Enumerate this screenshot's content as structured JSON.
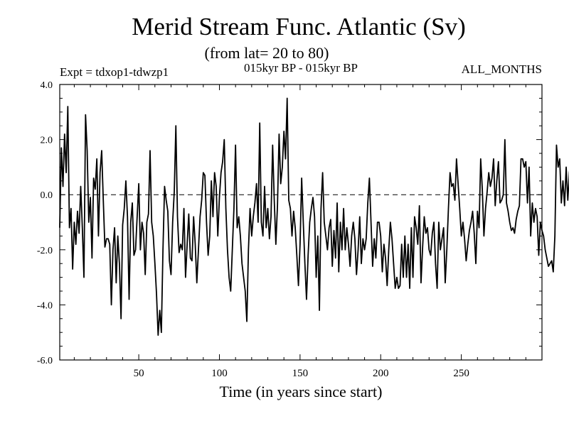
{
  "chart_data": {
    "type": "line",
    "title": "Merid Stream Func. Atlantic (Sv)",
    "subtitle": "(from lat= 20 to 80)",
    "header_left": "Expt = tdxop1-tdwzp1",
    "header_center": "015kyr BP - 015kyr BP",
    "header_right": "ALL_MONTHS",
    "xlabel": "Time (in years since start)",
    "ylabel": "",
    "xlim": [
      1,
      300
    ],
    "ylim": [
      -6.0,
      4.0
    ],
    "x_ticks": [
      50,
      100,
      150,
      200,
      250
    ],
    "x_tick_labels": [
      "50",
      "100",
      "150",
      "200",
      "250"
    ],
    "y_ticks": [
      -6,
      -4,
      -2,
      0,
      2,
      4
    ],
    "y_tick_labels": [
      "-6.0",
      "-4.0",
      "-2.0",
      "0.0",
      "2.0",
      "4.0"
    ],
    "zero_line": "dashed",
    "series": [
      {
        "name": "Merid Stream Func. Atlantic",
        "color": "#000000",
        "x_start": 1,
        "x_step": 1,
        "values": [
          -1.2,
          1.7,
          0.3,
          2.2,
          0.8,
          3.2,
          -1.2,
          -0.5,
          -2.7,
          -1.0,
          -1.8,
          -0.6,
          -1.4,
          0.3,
          -1.2,
          -3.0,
          2.9,
          1.6,
          -1.0,
          -0.1,
          -2.3,
          0.6,
          0.2,
          1.3,
          -1.5,
          0.8,
          1.6,
          -0.2,
          -1.9,
          -1.6,
          -1.6,
          -1.8,
          -4.0,
          -2.0,
          -1.2,
          -3.2,
          -1.5,
          -2.5,
          -4.5,
          -1.1,
          -0.5,
          0.5,
          -0.8,
          -3.8,
          -1.0,
          -0.3,
          -2.2,
          -2.0,
          -0.8,
          0.4,
          -2.0,
          -1.0,
          -1.4,
          -2.9,
          -1.0,
          -0.7,
          1.6,
          -1.0,
          -1.5,
          -2.5,
          -3.6,
          -5.1,
          -4.2,
          -5.0,
          -2.0,
          0.3,
          -0.2,
          -0.6,
          -2.4,
          -2.9,
          -1.0,
          0.1,
          2.5,
          -0.8,
          -2.1,
          -1.8,
          -2.0,
          -0.5,
          -3.0,
          -1.8,
          -0.7,
          -2.3,
          -2.4,
          -0.8,
          -1.8,
          -3.2,
          -2.0,
          -0.8,
          -0.2,
          0.8,
          0.7,
          -1.0,
          -2.2,
          -1.5,
          0.5,
          -0.8,
          0.8,
          0.3,
          -1.5,
          -0.1,
          0.8,
          1.2,
          2.0,
          -0.5,
          -2.0,
          -3.0,
          -3.5,
          -2.0,
          -0.5,
          1.8,
          -1.2,
          -0.8,
          -1.5,
          -2.5,
          -3.0,
          -3.5,
          -4.6,
          -2.0,
          -0.5,
          -1.5,
          -0.8,
          -0.3,
          0.4,
          -1.0,
          2.6,
          -1.0,
          -1.5,
          0.3,
          -1.2,
          -0.5,
          -1.6,
          -0.8,
          1.8,
          -0.2,
          -1.8,
          -0.4,
          2.2,
          0.4,
          1.0,
          2.3,
          1.3,
          3.5,
          -0.2,
          -0.5,
          -1.5,
          -0.6,
          -1.2,
          -2.2,
          -3.3,
          -1.8,
          0.6,
          -1.0,
          -2.5,
          -3.8,
          -2.2,
          -1.0,
          -0.5,
          -0.1,
          -0.8,
          -3.0,
          -1.5,
          -4.2,
          -0.5,
          0.8,
          -1.0,
          -1.5,
          -2.0,
          -1.2,
          -0.9,
          -2.6,
          -1.3,
          -2.3,
          -0.3,
          -2.8,
          -1.0,
          -2.0,
          -0.5,
          -2.0,
          -1.2,
          -1.8,
          -2.6,
          -1.5,
          -1.0,
          -1.6,
          -2.9,
          -2.0,
          -0.8,
          -2.5,
          -1.6,
          -2.0,
          -1.6,
          -0.3,
          0.6,
          -1.0,
          -2.6,
          -1.6,
          -2.3,
          -1.0,
          -1.0,
          -1.5,
          -2.8,
          -1.8,
          -2.3,
          -3.3,
          -2.0,
          -1.0,
          -1.6,
          -2.5,
          -3.4,
          -3.0,
          -3.4,
          -3.3,
          -1.8,
          -3.0,
          -1.5,
          -3.0,
          -1.8,
          -3.4,
          -1.2,
          -3.0,
          -0.8,
          -1.2,
          -1.8,
          -0.4,
          -3.2,
          -1.9,
          -0.8,
          -1.4,
          -1.2,
          -2.0,
          -2.2,
          -1.4,
          -1.0,
          -2.5,
          -3.4,
          -1.0,
          -2.0,
          -1.6,
          -1.2,
          -3.2,
          -2.0,
          -0.5,
          0.8,
          0.3,
          0.4,
          -0.2,
          1.3,
          0.4,
          -0.5,
          -1.5,
          -1.0,
          -1.6,
          -2.4,
          -1.8,
          -1.3,
          -1.0,
          -0.6,
          -1.4,
          -2.5,
          -0.6,
          -1.2,
          1.3,
          0.2,
          -1.5,
          -0.5,
          0.1,
          0.8,
          0.3,
          0.6,
          1.3,
          -0.4,
          0.5,
          1.2,
          -0.3,
          -0.2,
          0.0,
          2.0,
          -0.3,
          -0.6,
          -1.0,
          -1.3,
          -1.2,
          -1.4,
          -0.9,
          -0.6,
          -0.4,
          1.3,
          1.3,
          1.0,
          1.2,
          -0.3,
          1.0,
          -1.5,
          -0.3,
          -1.0,
          -0.5,
          -0.8,
          -2.2,
          -1.0,
          -1.3,
          -1.5,
          -2.0,
          -2.3,
          -2.6,
          -2.5,
          -2.4,
          -2.8,
          -1.5,
          1.8,
          1.0,
          1.3,
          -0.3,
          0.5,
          -0.4,
          1.0,
          -0.2,
          0.8,
          1.3
        ]
      }
    ]
  }
}
